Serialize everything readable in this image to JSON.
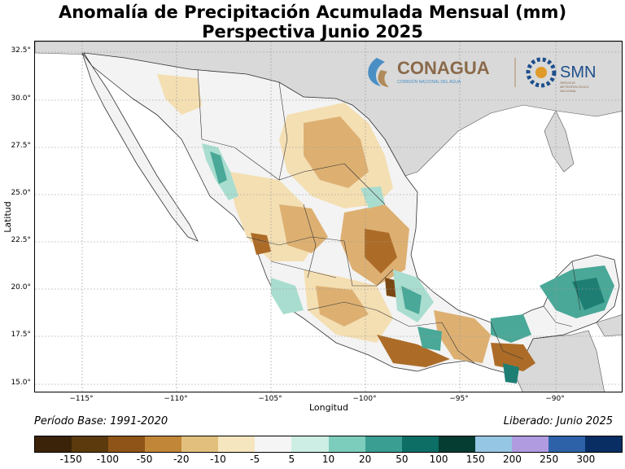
{
  "title": {
    "line1": "Anomalía de Precipitación Acumulada Mensual (mm)",
    "line2": "Perspectiva Junio 2025"
  },
  "axes": {
    "x_label": "Longitud",
    "y_label": "Latitud",
    "lon_ticks": [
      "−115°",
      "−110°",
      "−105°",
      "−100°",
      "−95°",
      "−90°"
    ],
    "lat_ticks": [
      "32.5°",
      "30.0°",
      "27.5°",
      "25.0°",
      "22.5°",
      "20.0°",
      "17.5°",
      "15.0°"
    ]
  },
  "logos": {
    "conagua_name": "CONAGUA",
    "conagua_subtitle": "COMISIÓN NACIONAL DEL AGUA",
    "smn_name": "SMN",
    "smn_subtitle_1": "SERVICIO",
    "smn_subtitle_2": "METEOROLÓGICO",
    "smn_subtitle_3": "NACIONAL"
  },
  "footer": {
    "base_period": "Período Base: 1991-2020",
    "released": "Liberado: Junio 2025"
  },
  "colorbar": {
    "colors": [
      "#3b2309",
      "#5c3a0d",
      "#8f5518",
      "#c28638",
      "#e2bf7d",
      "#f6e6bf",
      "#f5f5f5",
      "#cdeee4",
      "#7ccdbc",
      "#3a9e92",
      "#0d6e66",
      "#053d33",
      "#95c6e3",
      "#b19be0",
      "#2d62a8",
      "#082e63"
    ],
    "tick_labels": [
      "-150",
      "-100",
      "-50",
      "-20",
      "-10",
      "-5",
      "5",
      "10",
      "20",
      "50",
      "100",
      "150",
      "200",
      "250",
      "300"
    ]
  },
  "colors": {
    "land_other": "#d9d9d9",
    "ocean": "#ffffff",
    "mexico_base": "#f3f3f3",
    "dry_light": "#f4dfb3",
    "dry_mid": "#ddb072",
    "dry_dark": "#ac6c28",
    "dry_darkest": "#7a4814",
    "wet_light": "#a9ddcf",
    "wet_mid": "#4aa898",
    "wet_dark": "#1e7e73"
  }
}
